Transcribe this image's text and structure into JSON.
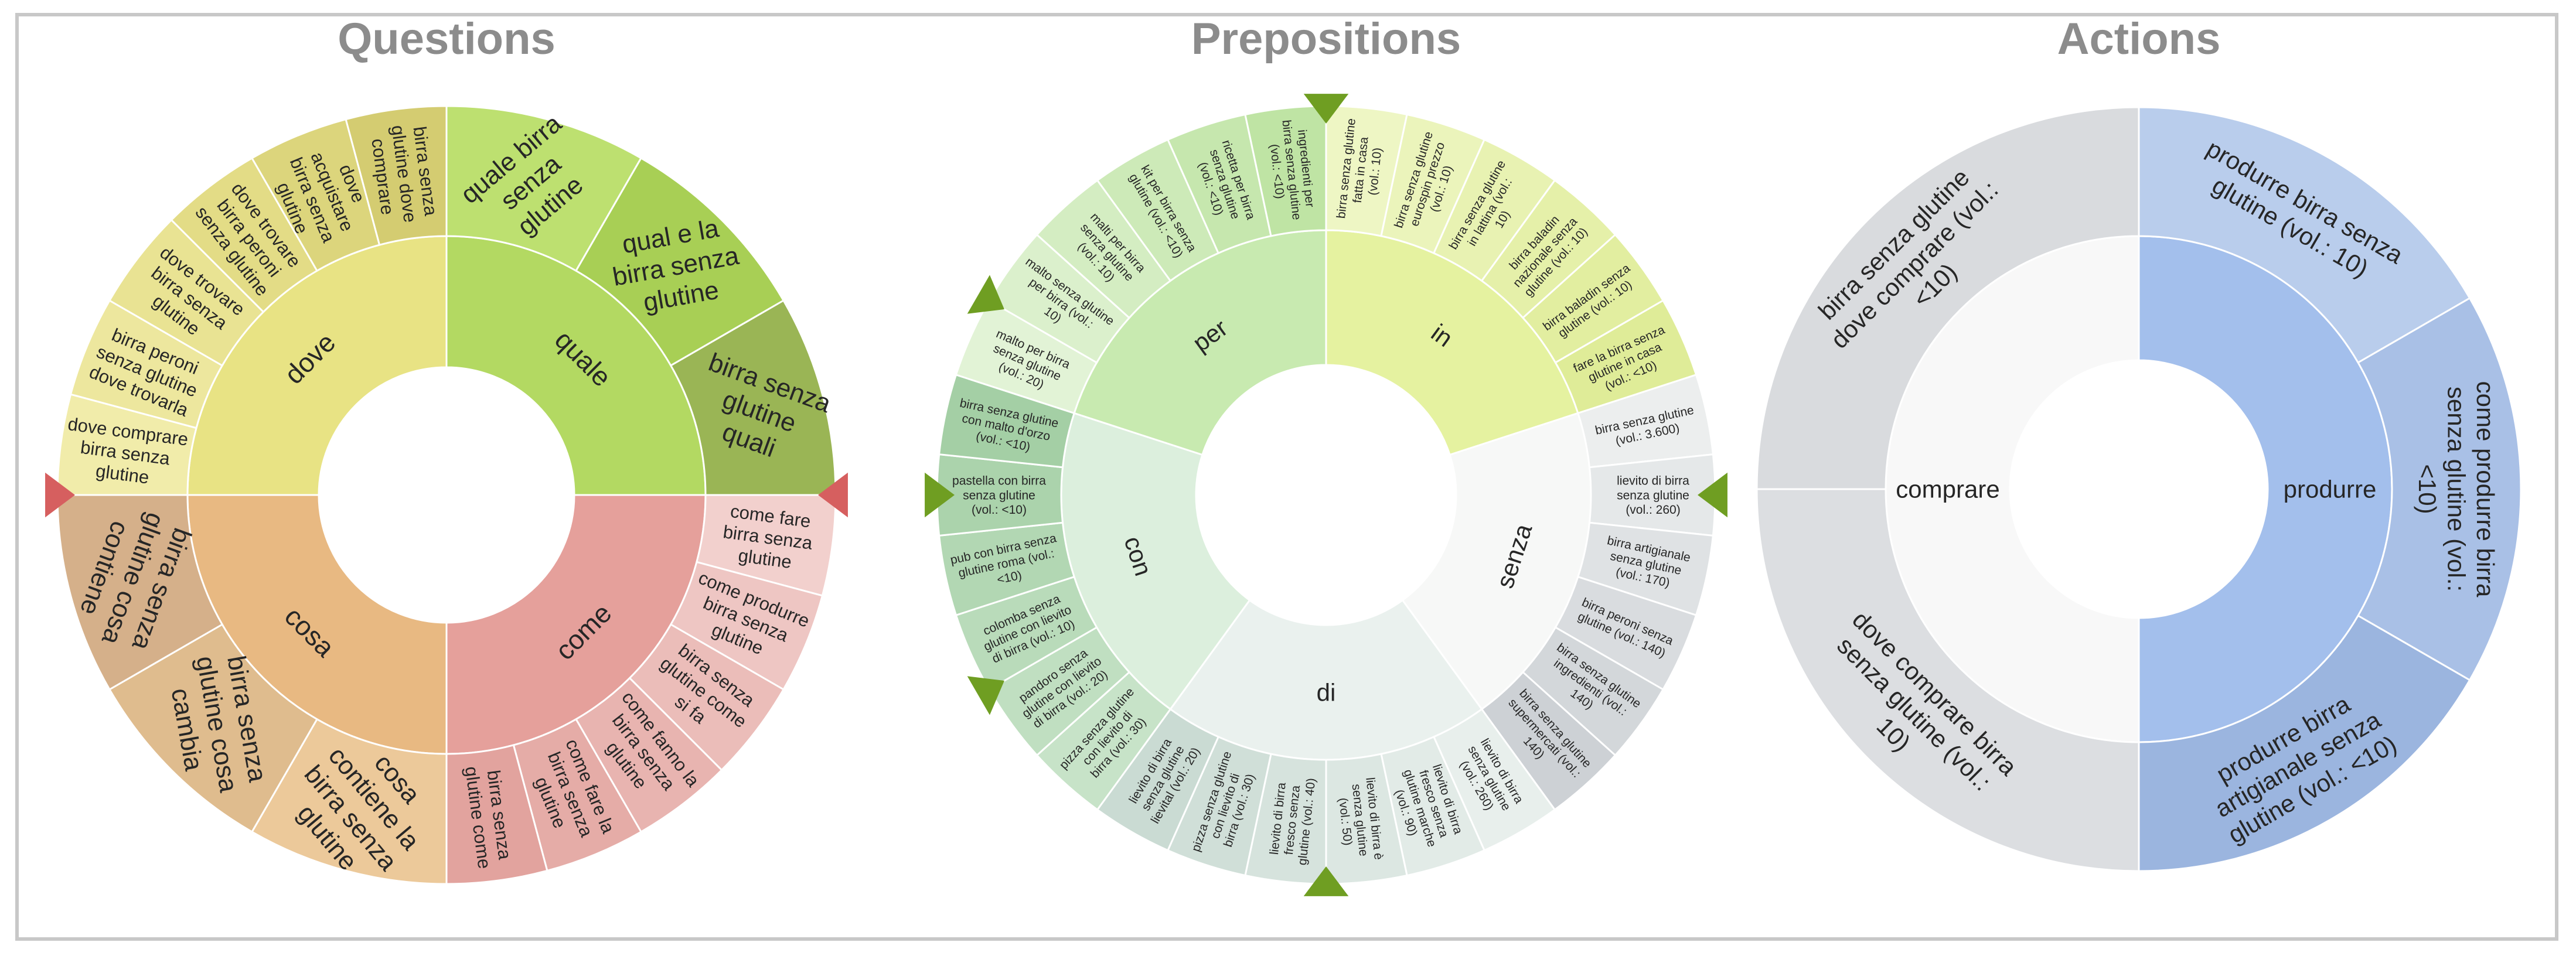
{
  "colors": {
    "frame": "#c8c8c8",
    "title": "#8c8c8c",
    "pointer_red": "#d65f5f",
    "pointer_green": "#6f9e22"
  },
  "panels": [
    {
      "title": "Questions",
      "pointer_color": "#d65f5f",
      "pointers": [
        -90,
        90
      ],
      "groups": [
        {
          "label": "quale",
          "color": "#b3d962",
          "children": [
            {
              "label": "quale birra senza glutine",
              "color": "#bde070"
            },
            {
              "label": "qual e la birra senza glutine",
              "color": "#a8cf55"
            },
            {
              "label": "birra senza glutine quali",
              "color": "#9ab555"
            }
          ]
        },
        {
          "label": "come",
          "color": "#e5a09b",
          "children": [
            {
              "label": "come fare birra senza glutine",
              "color": "#f2d0cd"
            },
            {
              "label": "come produrre birra senza glutine",
              "color": "#eec6c3"
            },
            {
              "label": "birra senza glutine come si fa",
              "color": "#ebbdb9"
            },
            {
              "label": "come fanno la birra senza glutine",
              "color": "#e8b4b0"
            },
            {
              "label": "come fare la birra senza glutine",
              "color": "#e5aca7"
            },
            {
              "label": "birra senza glutine come",
              "color": "#e2a39e"
            }
          ]
        },
        {
          "label": "cosa",
          "color": "#e8b982",
          "children": [
            {
              "label": "cosa contiene la birra senza glutine",
              "color": "#ecc99a"
            },
            {
              "label": "birra senza glutine cosa cambia",
              "color": "#dfbc8e"
            },
            {
              "label": "birra senza glutine cosa contiene",
              "color": "#d5b08a"
            }
          ]
        },
        {
          "label": "dove",
          "color": "#e8e384",
          "children": [
            {
              "label": "dove comprare birra senza glutine",
              "color": "#f1ecaa"
            },
            {
              "label": "birra peroni senza glutine dove trovarla",
              "color": "#ede79e"
            },
            {
              "label": "dove trovare birra senza glutine",
              "color": "#e9e393"
            },
            {
              "label": "dove trovare birra peroni senza glutine",
              "color": "#e3dc86"
            },
            {
              "label": "dove acquistare birra senza glutine",
              "color": "#dcd57c"
            },
            {
              "label": "birra senza glutine dove comprare",
              "color": "#d4cc71"
            }
          ]
        }
      ]
    },
    {
      "title": "Prepositions",
      "pointer_color": "#6f9e22",
      "pointers": [
        -90,
        -60,
        0,
        90,
        180,
        240
      ],
      "groups": [
        {
          "label": "in",
          "color": "#e5f2a0",
          "children": [
            {
              "label": "birra senza glutine fatta in casa (vol.: 10)",
              "color": "#eef6c4"
            },
            {
              "label": "birra senza glutine eurospin prezzo (vol.: 10)",
              "color": "#ebf4bb"
            },
            {
              "label": "birra senza glutine in lattina (vol.: 10)",
              "color": "#e8f2b2"
            },
            {
              "label": "birra baladin nazionale senza glutine (vol.: 10)",
              "color": "#e5f0a9"
            },
            {
              "label": "birra baladin senza glutine (vol.: 10)",
              "color": "#e2eea0"
            },
            {
              "label": "fare la birra senza glutine in casa (vol.: <10)",
              "color": "#dfec98"
            }
          ]
        },
        {
          "label": "senza",
          "color": "#f7f8f7",
          "children": [
            {
              "label": "birra senza glutine (vol.: 3.600)",
              "color": "#eceeee"
            },
            {
              "label": "lievito di birra senza glutine (vol.: 260)",
              "color": "#e5e8e9"
            },
            {
              "label": "birra artigianale senza glutine (vol.: 170)",
              "color": "#dfe2e4"
            },
            {
              "label": "birra peroni senza glutine (vol.: 140)",
              "color": "#d9dcdf"
            },
            {
              "label": "birra senza glutine ingredienti (vol.: 140)",
              "color": "#d3d7da"
            },
            {
              "label": "birra senza glutine supermercati (vol.: 140)",
              "color": "#cdd1d5"
            }
          ]
        },
        {
          "label": "di",
          "color": "#eaf1ee",
          "children": [
            {
              "label": "lievito di birra senza glutine (vol.: 260)",
              "color": "#e8efec"
            },
            {
              "label": "lievito di birra fresco senza glutine marche (vol.: 90)",
              "color": "#e2ebe7"
            },
            {
              "label": "lievito di birra è senza glutine (vol.: 50)",
              "color": "#dce7e2"
            },
            {
              "label": "lievito di birra fresco senza glutine (vol.: 40)",
              "color": "#d6e3dd"
            },
            {
              "label": "pizza senza glutine con lievito di birra (vol.: 30)",
              "color": "#d0dfd8"
            },
            {
              "label": "lievito di birra senza glutine lievital (vol.: 20)",
              "color": "#cadbd3"
            }
          ]
        },
        {
          "label": "con",
          "color": "#dcefdd",
          "children": [
            {
              "label": "pizza senza glutine con lievito di birra (vol.: 30)",
              "color": "#c7e3c8"
            },
            {
              "label": "pandoro senza glutine con lievito di birra (vol.: 20)",
              "color": "#c0dfc1"
            },
            {
              "label": "colomba senza glutine con lievito di birra (vol.: 10)",
              "color": "#b9dbba"
            },
            {
              "label": "pub con birra senza glutine roma (vol.: <10)",
              "color": "#b2d7b3"
            },
            {
              "label": "pastella con birra senza glutine (vol.: <10)",
              "color": "#abd3ac"
            },
            {
              "label": "birra senza glutine con malto d'orzo (vol.: <10)",
              "color": "#a4cfa5"
            }
          ]
        },
        {
          "label": "per",
          "color": "#c8eab0",
          "children": [
            {
              "label": "malto per birra senza glutine (vol.: 20)",
              "color": "#e2f3d6"
            },
            {
              "label": "malto senza glutine per birra (vol.: 10)",
              "color": "#dbf0cc"
            },
            {
              "label": "malti per birra senza glutine (vol.: 10)",
              "color": "#d4edc2"
            },
            {
              "label": "kit per birra senza glutine (vol.: <10)",
              "color": "#cdeab8"
            },
            {
              "label": "ricetta per birra senza glutine (vol.: <10)",
              "color": "#c6e7ae"
            },
            {
              "label": "ingredienti per birra senza glutine (vol.: <10)",
              "color": "#bfe4a4"
            }
          ]
        }
      ]
    },
    {
      "title": "Actions",
      "pointer_color": "#6f9e22",
      "pointers": [],
      "groups": [
        {
          "label": "produrre",
          "color": "#a3bfec",
          "children": [
            {
              "label": "produrre birra senza glutine (vol.: 10)",
              "color": "#b9cdec"
            },
            {
              "label": "come produrre birra senza glutine (vol.: <10)",
              "color": "#a9c0e6"
            },
            {
              "label": "produrre birra artigianale senza glutine (vol.: <10)",
              "color": "#9bb5df"
            }
          ]
        },
        {
          "label": "comprare",
          "color": "#f8f8f8",
          "children": [
            {
              "label": "dove comprare birra senza glutine (vol.: 10)",
              "color": "#dcdee1"
            },
            {
              "label": "birra senza glutine dove comprare (vol.: <10)",
              "color": "#d9dbde"
            }
          ]
        }
      ]
    }
  ]
}
